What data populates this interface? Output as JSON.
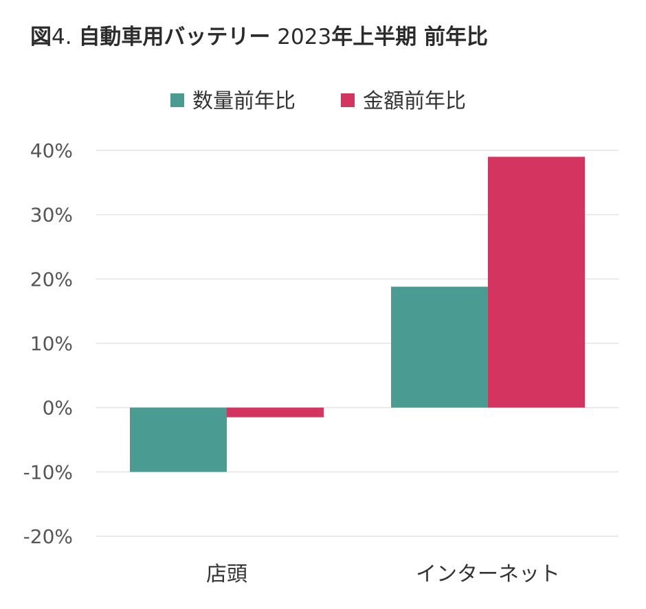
{
  "title": {
    "prefix": "図",
    "number": "4.",
    "main": "自動車用バッテリー",
    "year": "2023",
    "period": "年上半期 前年比"
  },
  "chart_data": {
    "type": "bar",
    "categories": [
      "店頭",
      "インターネット"
    ],
    "series": [
      {
        "name": "数量前年比",
        "color": "#4a9b91",
        "values": [
          -10,
          18.8
        ]
      },
      {
        "name": "金額前年比",
        "color": "#d33560",
        "values": [
          -1.5,
          39
        ]
      }
    ],
    "ylim": [
      -20,
      40
    ],
    "yticks": [
      40,
      30,
      20,
      10,
      0,
      -10,
      -20
    ],
    "ytick_labels": [
      "40%",
      "30%",
      "20%",
      "10%",
      "0%",
      "-10%",
      "-20%"
    ],
    "legend_position": "top-center",
    "grid": true
  }
}
